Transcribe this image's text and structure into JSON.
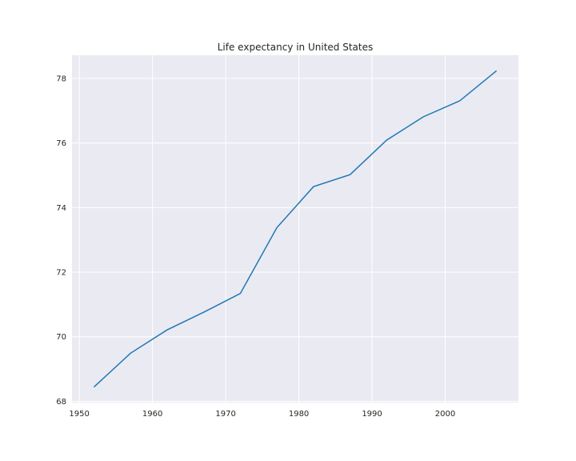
{
  "chart_data": {
    "type": "line",
    "title": "Life expectancy in United States",
    "xlabel": "",
    "ylabel": "",
    "xlim": [
      1949,
      2010
    ],
    "ylim": [
      67.96,
      78.72
    ],
    "xticks": [
      1950,
      1960,
      1970,
      1980,
      1990,
      2000
    ],
    "yticks": [
      68,
      70,
      72,
      74,
      76,
      78
    ],
    "grid": true,
    "legend": "none",
    "colors": {
      "line": "#1f77b4",
      "plot_background": "#eaeaf2",
      "grid": "#ffffff"
    },
    "x": [
      1952,
      1957,
      1962,
      1967,
      1972,
      1977,
      1982,
      1987,
      1992,
      1997,
      2002,
      2007
    ],
    "y": [
      68.44,
      69.49,
      70.21,
      70.76,
      71.34,
      73.38,
      74.65,
      75.02,
      76.09,
      76.81,
      77.31,
      78.24
    ]
  }
}
